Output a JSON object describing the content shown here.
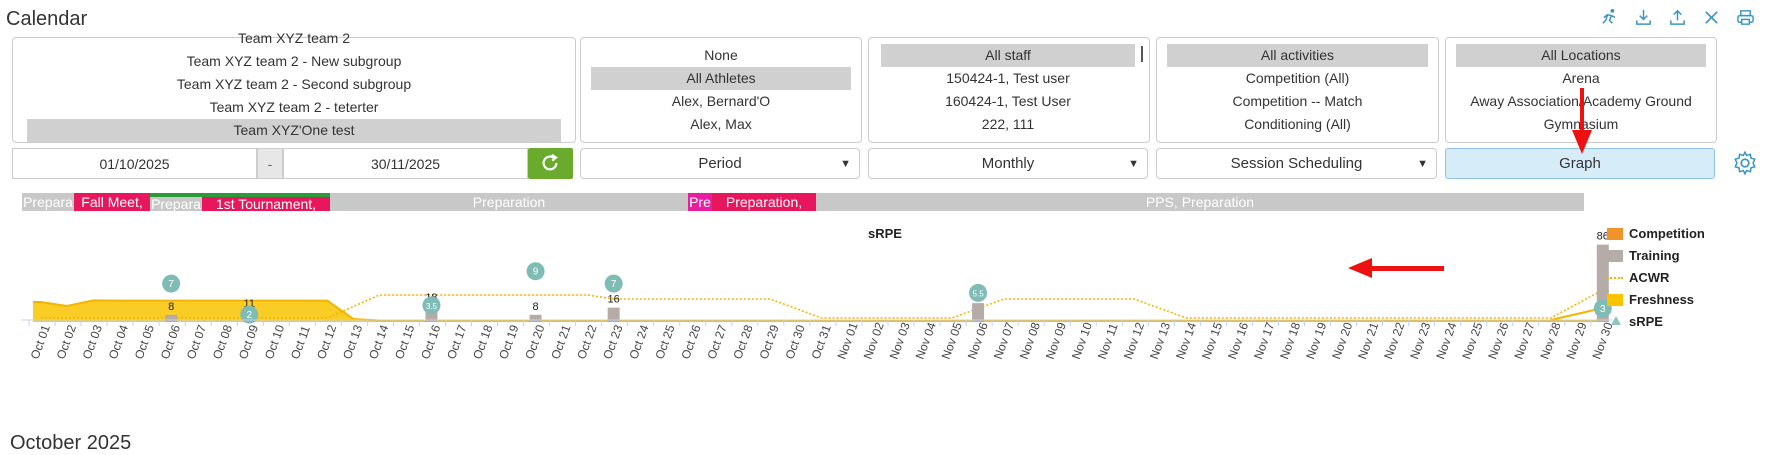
{
  "header": {
    "title": "Calendar",
    "icons": [
      "run-icon",
      "download-icon",
      "upload-icon",
      "close-icon",
      "print-icon"
    ]
  },
  "teams": {
    "items": [
      "Team XYZ team 2",
      "Team XYZ team 2 - New subgroup",
      "Team XYZ team 2 - Second subgroup",
      "Team XYZ team 2 - teterter",
      "Team XYZ'One test"
    ],
    "selected_index": 4
  },
  "athletes": {
    "items": [
      "None",
      "All Athletes",
      "Alex, Bernard'O",
      "Alex, Max"
    ],
    "selected_index": 1
  },
  "staff": {
    "items": [
      "All staff",
      "150424-1, Test user",
      "160424-1, Test User",
      "222, 111"
    ],
    "selected_index": 0
  },
  "activities": {
    "items": [
      "All activities",
      "Competition (All)",
      "Competition -- Match",
      "Conditioning (All)"
    ],
    "selected_index": 0
  },
  "locations": {
    "items": [
      "All Locations",
      "Arena",
      "Away Association/Academy Ground",
      "Gymnasium"
    ],
    "selected_index": 0
  },
  "filters": {
    "date_from": "01/10/2025",
    "date_sep": "-",
    "date_to": "30/11/2025",
    "period": "Period",
    "interval": "Monthly",
    "scheduling": "Session Scheduling",
    "view_button": "Graph"
  },
  "phases": [
    {
      "label": "Prepara",
      "color": "#c8c8c8"
    },
    {
      "label": "Fall Meet,",
      "color": "#e8175d"
    },
    {
      "label": "Prepara",
      "color": "#c8c8c8"
    },
    {
      "label": "1st Tournament,",
      "color": "#e8175d"
    },
    {
      "label": "Preparation",
      "color": "#c8c8c8"
    },
    {
      "label": "Pre",
      "color": "#e81ea0"
    },
    {
      "label": "Preparation,",
      "color": "#e8175d"
    },
    {
      "label": "PPS, Preparation",
      "color": "#c8c8c8"
    }
  ],
  "legend": [
    {
      "label": "Competition",
      "color": "#f0932b",
      "kind": "box"
    },
    {
      "label": "Training",
      "color": "#b5aca8",
      "kind": "box"
    },
    {
      "label": "ACWR",
      "color": "#f5b400",
      "kind": "dots"
    },
    {
      "label": "Freshness",
      "color": "#f9c300",
      "kind": "box"
    },
    {
      "label": "sRPE",
      "color": "#8fc5bf",
      "kind": "tri"
    }
  ],
  "chart_data": {
    "type": "bar",
    "title": "sRPE",
    "x": [
      "Oct 01",
      "Oct 02",
      "Oct 03",
      "Oct 04",
      "Oct 05",
      "Oct 06",
      "Oct 07",
      "Oct 08",
      "Oct 09",
      "Oct 10",
      "Oct 11",
      "Oct 12",
      "Oct 13",
      "Oct 14",
      "Oct 15",
      "Oct 16",
      "Oct 17",
      "Oct 18",
      "Oct 19",
      "Oct 20",
      "Oct 21",
      "Oct 22",
      "Oct 23",
      "Oct 24",
      "Oct 25",
      "Oct 26",
      "Oct 27",
      "Oct 28",
      "Oct 29",
      "Oct 30",
      "Oct 31",
      "Nov 01",
      "Nov 02",
      "Nov 03",
      "Nov 04",
      "Nov 05",
      "Nov 06",
      "Nov 07",
      "Nov 08",
      "Nov 09",
      "Nov 10",
      "Nov 11",
      "Nov 12",
      "Nov 13",
      "Nov 14",
      "Nov 15",
      "Nov 16",
      "Nov 17",
      "Nov 18",
      "Nov 19",
      "Nov 20",
      "Nov 21",
      "Nov 22",
      "Nov 23",
      "Nov 24",
      "Nov 25",
      "Nov 26",
      "Nov 27",
      "Nov 28",
      "Nov 29",
      "Nov 30"
    ],
    "series": [
      {
        "name": "Training",
        "values": {
          "Oct 06": 8,
          "Oct 09": 11,
          "Oct 16": 18,
          "Oct 20": 8,
          "Oct 23": 16,
          "Nov 06": 21,
          "Nov 30": 86
        }
      },
      {
        "name": "sRPE",
        "values": {
          "Oct 06": 7,
          "Oct 09": 2,
          "Oct 16": 3.5,
          "Oct 20": 9,
          "Oct 23": 7,
          "Nov 06": 5.5,
          "Nov 30": 3
        }
      },
      {
        "name": "ACWR",
        "description": "dotted line"
      },
      {
        "name": "Freshness",
        "description": "filled area"
      }
    ]
  },
  "month_title": "October 2025"
}
